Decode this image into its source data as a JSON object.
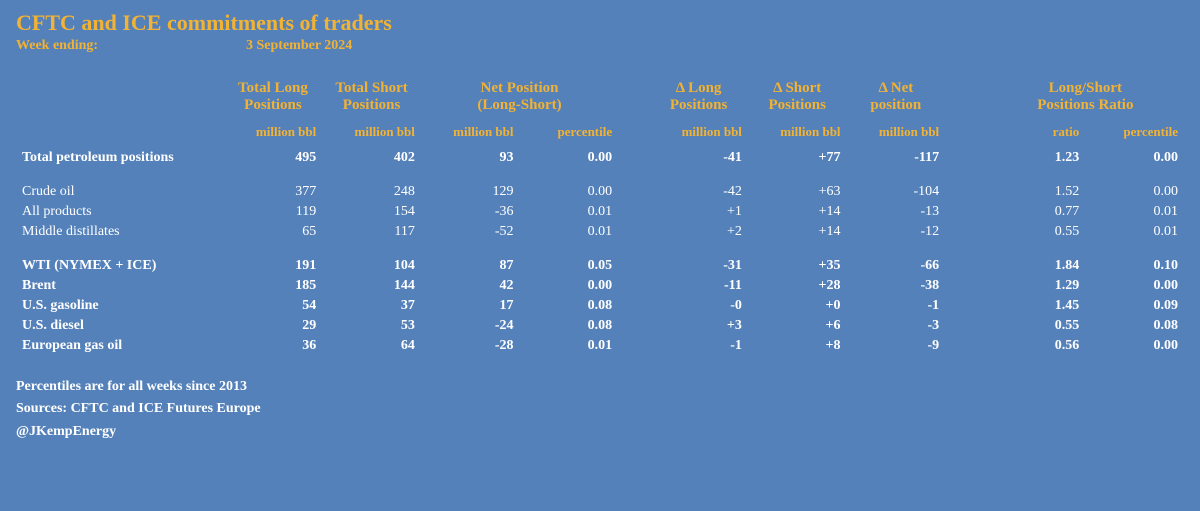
{
  "colors": {
    "background": "#5481b9",
    "accent": "#f2b233",
    "text": "#ffffff"
  },
  "title": "CFTC and ICE commitments of traders",
  "week_label": "Week ending:",
  "week_value": "3 September 2024",
  "columns": {
    "group1": {
      "top": "Total Long",
      "bot": "Positions",
      "unit": "million bbl"
    },
    "group2": {
      "top": "Total Short",
      "bot": "Positions",
      "unit": "million bbl"
    },
    "group3": {
      "top": "Net Position",
      "bot": "(Long-Short)",
      "unit1": "million bbl",
      "unit2": "percentile"
    },
    "group4": {
      "top": "Δ Long",
      "bot": "Positions",
      "unit": "million bbl"
    },
    "group5": {
      "top": "Δ Short",
      "bot": "Positions",
      "unit": "million bbl"
    },
    "group6": {
      "top": "Δ Net",
      "bot": "position",
      "unit": "million bbl"
    },
    "group7": {
      "top": "Long/Short",
      "bot": "Positions Ratio",
      "unit1": "ratio",
      "unit2": "percentile"
    }
  },
  "rows": [
    {
      "name": "Total petroleum positions",
      "bold": true,
      "long": "495",
      "short": "402",
      "net": "93",
      "net_pct": "0.00",
      "dlong": "-41",
      "dshort": "+77",
      "dnet": "-117",
      "ratio": "1.23",
      "ratio_pct": "0.00"
    },
    {
      "name": "Crude oil",
      "long": "377",
      "short": "248",
      "net": "129",
      "net_pct": "0.00",
      "dlong": "-42",
      "dshort": "+63",
      "dnet": "-104",
      "ratio": "1.52",
      "ratio_pct": "0.00"
    },
    {
      "name": "All products",
      "long": "119",
      "short": "154",
      "net": "-36",
      "net_pct": "0.01",
      "dlong": "+1",
      "dshort": "+14",
      "dnet": "-13",
      "ratio": "0.77",
      "ratio_pct": "0.01"
    },
    {
      "name": "Middle distillates",
      "long": "65",
      "short": "117",
      "net": "-52",
      "net_pct": "0.01",
      "dlong": "+2",
      "dshort": "+14",
      "dnet": "-12",
      "ratio": "0.55",
      "ratio_pct": "0.01"
    },
    {
      "name": "WTI (NYMEX + ICE)",
      "bold": true,
      "long": "191",
      "short": "104",
      "net": "87",
      "net_pct": "0.05",
      "dlong": "-31",
      "dshort": "+35",
      "dnet": "-66",
      "ratio": "1.84",
      "ratio_pct": "0.10"
    },
    {
      "name": "Brent",
      "bold": true,
      "long": "185",
      "short": "144",
      "net": "42",
      "net_pct": "0.00",
      "dlong": "-11",
      "dshort": "+28",
      "dnet": "-38",
      "ratio": "1.29",
      "ratio_pct": "0.00"
    },
    {
      "name": "U.S. gasoline",
      "bold": true,
      "long": "54",
      "short": "37",
      "net": "17",
      "net_pct": "0.08",
      "dlong": "-0",
      "dshort": "+0",
      "dnet": "-1",
      "ratio": "1.45",
      "ratio_pct": "0.09"
    },
    {
      "name": "U.S. diesel",
      "bold": true,
      "long": "29",
      "short": "53",
      "net": "-24",
      "net_pct": "0.08",
      "dlong": "+3",
      "dshort": "+6",
      "dnet": "-3",
      "ratio": "0.55",
      "ratio_pct": "0.08"
    },
    {
      "name": "European gas oil",
      "bold": true,
      "long": "36",
      "short": "64",
      "net": "-28",
      "net_pct": "0.01",
      "dlong": "-1",
      "dshort": "+8",
      "dnet": "-9",
      "ratio": "0.56",
      "ratio_pct": "0.00"
    }
  ],
  "footer": {
    "note": "Percentiles are for all weeks since 2013",
    "source": "Sources: CFTC and ICE Futures Europe",
    "handle": "@JKempEnergy"
  }
}
